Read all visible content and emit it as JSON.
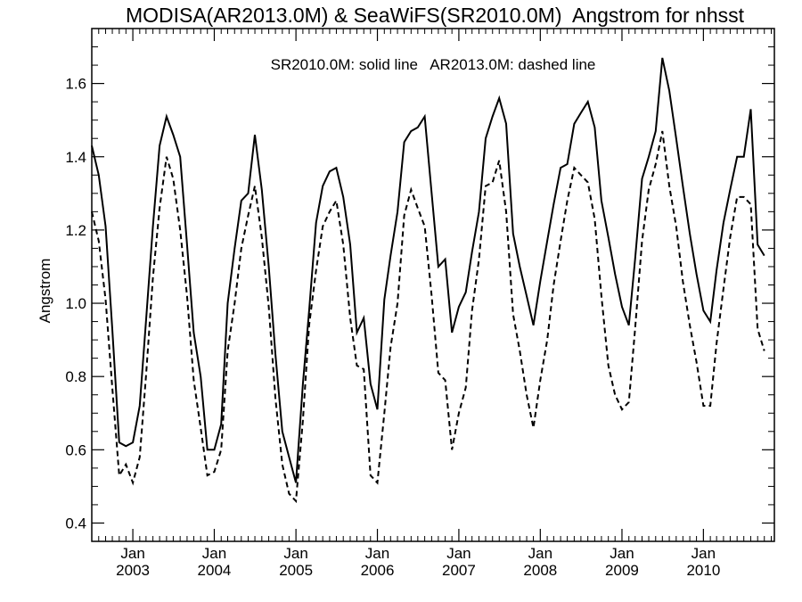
{
  "chart_data": {
    "type": "line",
    "title": "MODISA(AR2013.0M) & SeaWiFS(SR2010.0M)  Angstrom for nhsst",
    "subtitle": "SR2010.0M: solid line   AR2013.0M: dashed line",
    "xlabel": "",
    "ylabel": "Angstrom",
    "xlim": [
      "2002-07-01",
      "2010-11-15"
    ],
    "ylim": [
      0.35,
      1.75
    ],
    "y_ticks": [
      "0.4",
      "0.6",
      "0.8",
      "1.0",
      "1.2",
      "1.4",
      "1.6"
    ],
    "x_ticks": [
      {
        "month": "Jan",
        "year": "2003",
        "date": "2003-01-01"
      },
      {
        "month": "Jan",
        "year": "2004",
        "date": "2004-01-01"
      },
      {
        "month": "Jan",
        "year": "2005",
        "date": "2005-01-01"
      },
      {
        "month": "Jan",
        "year": "2006",
        "date": "2006-01-01"
      },
      {
        "month": "Jan",
        "year": "2007",
        "date": "2007-01-01"
      },
      {
        "month": "Jan",
        "year": "2008",
        "date": "2008-01-01"
      },
      {
        "month": "Jan",
        "year": "2009",
        "date": "2009-01-01"
      },
      {
        "month": "Jan",
        "year": "2010",
        "date": "2010-01-01"
      }
    ],
    "grid": false,
    "series": [
      {
        "name": "SR2010.0M",
        "style": "solid",
        "points": [
          [
            "2002-07-01",
            1.43
          ],
          [
            "2002-08-01",
            1.35
          ],
          [
            "2002-09-01",
            1.21
          ],
          [
            "2002-10-01",
            0.93
          ],
          [
            "2002-11-01",
            0.62
          ],
          [
            "2002-12-01",
            0.61
          ],
          [
            "2003-01-01",
            0.62
          ],
          [
            "2003-02-01",
            0.72
          ],
          [
            "2003-03-01",
            0.95
          ],
          [
            "2003-04-01",
            1.21
          ],
          [
            "2003-05-01",
            1.43
          ],
          [
            "2003-06-01",
            1.51
          ],
          [
            "2003-07-01",
            1.46
          ],
          [
            "2003-08-01",
            1.4
          ],
          [
            "2003-09-01",
            1.16
          ],
          [
            "2003-10-01",
            0.92
          ],
          [
            "2003-11-01",
            0.8
          ],
          [
            "2003-12-01",
            0.6
          ],
          [
            "2004-01-01",
            0.6
          ],
          [
            "2004-02-01",
            0.67
          ],
          [
            "2004-03-01",
            1.0
          ],
          [
            "2004-04-01",
            1.15
          ],
          [
            "2004-05-01",
            1.28
          ],
          [
            "2004-06-01",
            1.3
          ],
          [
            "2004-07-01",
            1.46
          ],
          [
            "2004-08-01",
            1.31
          ],
          [
            "2004-09-01",
            1.1
          ],
          [
            "2004-10-01",
            0.86
          ],
          [
            "2004-11-01",
            0.65
          ],
          [
            "2004-12-01",
            0.58
          ],
          [
            "2005-01-01",
            0.51
          ],
          [
            "2005-02-01",
            0.78
          ],
          [
            "2005-03-01",
            0.98
          ],
          [
            "2005-04-01",
            1.22
          ],
          [
            "2005-05-01",
            1.32
          ],
          [
            "2005-06-01",
            1.36
          ],
          [
            "2005-07-01",
            1.37
          ],
          [
            "2005-08-01",
            1.29
          ],
          [
            "2005-09-01",
            1.16
          ],
          [
            "2005-10-01",
            0.92
          ],
          [
            "2005-11-01",
            0.96
          ],
          [
            "2005-12-01",
            0.78
          ],
          [
            "2006-01-01",
            0.71
          ],
          [
            "2006-02-01",
            1.01
          ],
          [
            "2006-03-01",
            1.13
          ],
          [
            "2006-04-01",
            1.25
          ],
          [
            "2006-05-01",
            1.44
          ],
          [
            "2006-06-01",
            1.47
          ],
          [
            "2006-07-01",
            1.48
          ],
          [
            "2006-08-01",
            1.51
          ],
          [
            "2006-09-01",
            1.3
          ],
          [
            "2006-10-01",
            1.1
          ],
          [
            "2006-11-01",
            1.12
          ],
          [
            "2006-12-01",
            0.92
          ],
          [
            "2007-01-01",
            0.99
          ],
          [
            "2007-02-01",
            1.03
          ],
          [
            "2007-03-01",
            1.14
          ],
          [
            "2007-04-01",
            1.25
          ],
          [
            "2007-05-01",
            1.45
          ],
          [
            "2007-06-01",
            1.51
          ],
          [
            "2007-07-01",
            1.56
          ],
          [
            "2007-08-01",
            1.49
          ],
          [
            "2007-09-01",
            1.19
          ],
          [
            "2007-10-01",
            1.1
          ],
          [
            "2007-11-01",
            1.02
          ],
          [
            "2007-12-01",
            0.94
          ],
          [
            "2008-01-01",
            1.06
          ],
          [
            "2008-02-01",
            1.17
          ],
          [
            "2008-03-01",
            1.27
          ],
          [
            "2008-04-01",
            1.37
          ],
          [
            "2008-05-01",
            1.38
          ],
          [
            "2008-06-01",
            1.49
          ],
          [
            "2008-07-01",
            1.52
          ],
          [
            "2008-08-01",
            1.55
          ],
          [
            "2008-09-01",
            1.48
          ],
          [
            "2008-10-01",
            1.28
          ],
          [
            "2008-11-01",
            1.18
          ],
          [
            "2008-12-01",
            1.08
          ],
          [
            "2009-01-01",
            0.99
          ],
          [
            "2009-02-01",
            0.94
          ],
          [
            "2009-03-01",
            1.12
          ],
          [
            "2009-04-01",
            1.34
          ],
          [
            "2009-05-01",
            1.4
          ],
          [
            "2009-06-01",
            1.47
          ],
          [
            "2009-07-01",
            1.67
          ],
          [
            "2009-08-01",
            1.58
          ],
          [
            "2009-09-01",
            1.45
          ],
          [
            "2009-10-01",
            1.32
          ],
          [
            "2009-11-01",
            1.19
          ],
          [
            "2009-12-01",
            1.08
          ],
          [
            "2010-01-01",
            0.98
          ],
          [
            "2010-02-01",
            0.95
          ],
          [
            "2010-03-01",
            1.09
          ],
          [
            "2010-04-01",
            1.22
          ],
          [
            "2010-05-01",
            1.31
          ],
          [
            "2010-06-01",
            1.4
          ],
          [
            "2010-07-01",
            1.4
          ],
          [
            "2010-08-01",
            1.53
          ],
          [
            "2010-09-01",
            1.16
          ],
          [
            "2010-10-01",
            1.13
          ]
        ]
      },
      {
        "name": "AR2013.0M",
        "style": "dashed",
        "points": [
          [
            "2002-07-01",
            1.25
          ],
          [
            "2002-08-01",
            1.17
          ],
          [
            "2002-09-01",
            1.01
          ],
          [
            "2002-10-01",
            0.77
          ],
          [
            "2002-11-01",
            0.53
          ],
          [
            "2002-12-01",
            0.56
          ],
          [
            "2003-01-01",
            0.51
          ],
          [
            "2003-02-01",
            0.58
          ],
          [
            "2003-03-01",
            0.8
          ],
          [
            "2003-04-01",
            1.07
          ],
          [
            "2003-05-01",
            1.26
          ],
          [
            "2003-06-01",
            1.4
          ],
          [
            "2003-07-01",
            1.34
          ],
          [
            "2003-08-01",
            1.2
          ],
          [
            "2003-09-01",
            1.02
          ],
          [
            "2003-10-01",
            0.79
          ],
          [
            "2003-11-01",
            0.66
          ],
          [
            "2003-12-01",
            0.53
          ],
          [
            "2004-01-01",
            0.54
          ],
          [
            "2004-02-01",
            0.6
          ],
          [
            "2004-03-01",
            0.87
          ],
          [
            "2004-04-01",
            1.0
          ],
          [
            "2004-05-01",
            1.15
          ],
          [
            "2004-06-01",
            1.24
          ],
          [
            "2004-07-01",
            1.32
          ],
          [
            "2004-08-01",
            1.18
          ],
          [
            "2004-09-01",
            0.99
          ],
          [
            "2004-10-01",
            0.74
          ],
          [
            "2004-11-01",
            0.56
          ],
          [
            "2004-12-01",
            0.48
          ],
          [
            "2005-01-01",
            0.46
          ],
          [
            "2005-02-01",
            0.68
          ],
          [
            "2005-03-01",
            0.94
          ],
          [
            "2005-04-01",
            1.09
          ],
          [
            "2005-05-01",
            1.21
          ],
          [
            "2005-06-01",
            1.25
          ],
          [
            "2005-07-01",
            1.28
          ],
          [
            "2005-08-01",
            1.16
          ],
          [
            "2005-09-01",
            0.96
          ],
          [
            "2005-10-01",
            0.83
          ],
          [
            "2005-11-01",
            0.82
          ],
          [
            "2005-12-01",
            0.53
          ],
          [
            "2006-01-01",
            0.51
          ],
          [
            "2006-02-01",
            0.7
          ],
          [
            "2006-03-01",
            0.88
          ],
          [
            "2006-04-01",
            1.0
          ],
          [
            "2006-05-01",
            1.24
          ],
          [
            "2006-06-01",
            1.31
          ],
          [
            "2006-07-01",
            1.26
          ],
          [
            "2006-08-01",
            1.21
          ],
          [
            "2006-09-01",
            1.02
          ],
          [
            "2006-10-01",
            0.81
          ],
          [
            "2006-11-01",
            0.79
          ],
          [
            "2006-12-01",
            0.6
          ],
          [
            "2007-01-01",
            0.7
          ],
          [
            "2007-02-01",
            0.77
          ],
          [
            "2007-03-01",
            0.98
          ],
          [
            "2007-04-01",
            1.12
          ],
          [
            "2007-05-01",
            1.32
          ],
          [
            "2007-06-01",
            1.33
          ],
          [
            "2007-07-01",
            1.39
          ],
          [
            "2007-08-01",
            1.25
          ],
          [
            "2007-09-01",
            0.97
          ],
          [
            "2007-10-01",
            0.87
          ],
          [
            "2007-11-01",
            0.75
          ],
          [
            "2007-12-01",
            0.66
          ],
          [
            "2008-01-01",
            0.79
          ],
          [
            "2008-02-01",
            0.9
          ],
          [
            "2008-03-01",
            1.05
          ],
          [
            "2008-04-01",
            1.17
          ],
          [
            "2008-05-01",
            1.28
          ],
          [
            "2008-06-01",
            1.37
          ],
          [
            "2008-07-01",
            1.35
          ],
          [
            "2008-08-01",
            1.33
          ],
          [
            "2008-09-01",
            1.23
          ],
          [
            "2008-10-01",
            1.02
          ],
          [
            "2008-11-01",
            0.83
          ],
          [
            "2008-12-01",
            0.75
          ],
          [
            "2009-01-01",
            0.71
          ],
          [
            "2009-02-01",
            0.73
          ],
          [
            "2009-03-01",
            0.93
          ],
          [
            "2009-04-01",
            1.17
          ],
          [
            "2009-05-01",
            1.31
          ],
          [
            "2009-06-01",
            1.38
          ],
          [
            "2009-07-01",
            1.47
          ],
          [
            "2009-08-01",
            1.32
          ],
          [
            "2009-09-01",
            1.21
          ],
          [
            "2009-10-01",
            1.06
          ],
          [
            "2009-11-01",
            0.94
          ],
          [
            "2009-12-01",
            0.84
          ],
          [
            "2010-01-01",
            0.72
          ],
          [
            "2010-02-01",
            0.72
          ],
          [
            "2010-03-01",
            0.89
          ],
          [
            "2010-04-01",
            1.04
          ],
          [
            "2010-05-01",
            1.18
          ],
          [
            "2010-06-01",
            1.29
          ],
          [
            "2010-07-01",
            1.29
          ],
          [
            "2010-08-01",
            1.27
          ],
          [
            "2010-09-01",
            0.93
          ],
          [
            "2010-10-01",
            0.87
          ]
        ]
      }
    ]
  }
}
